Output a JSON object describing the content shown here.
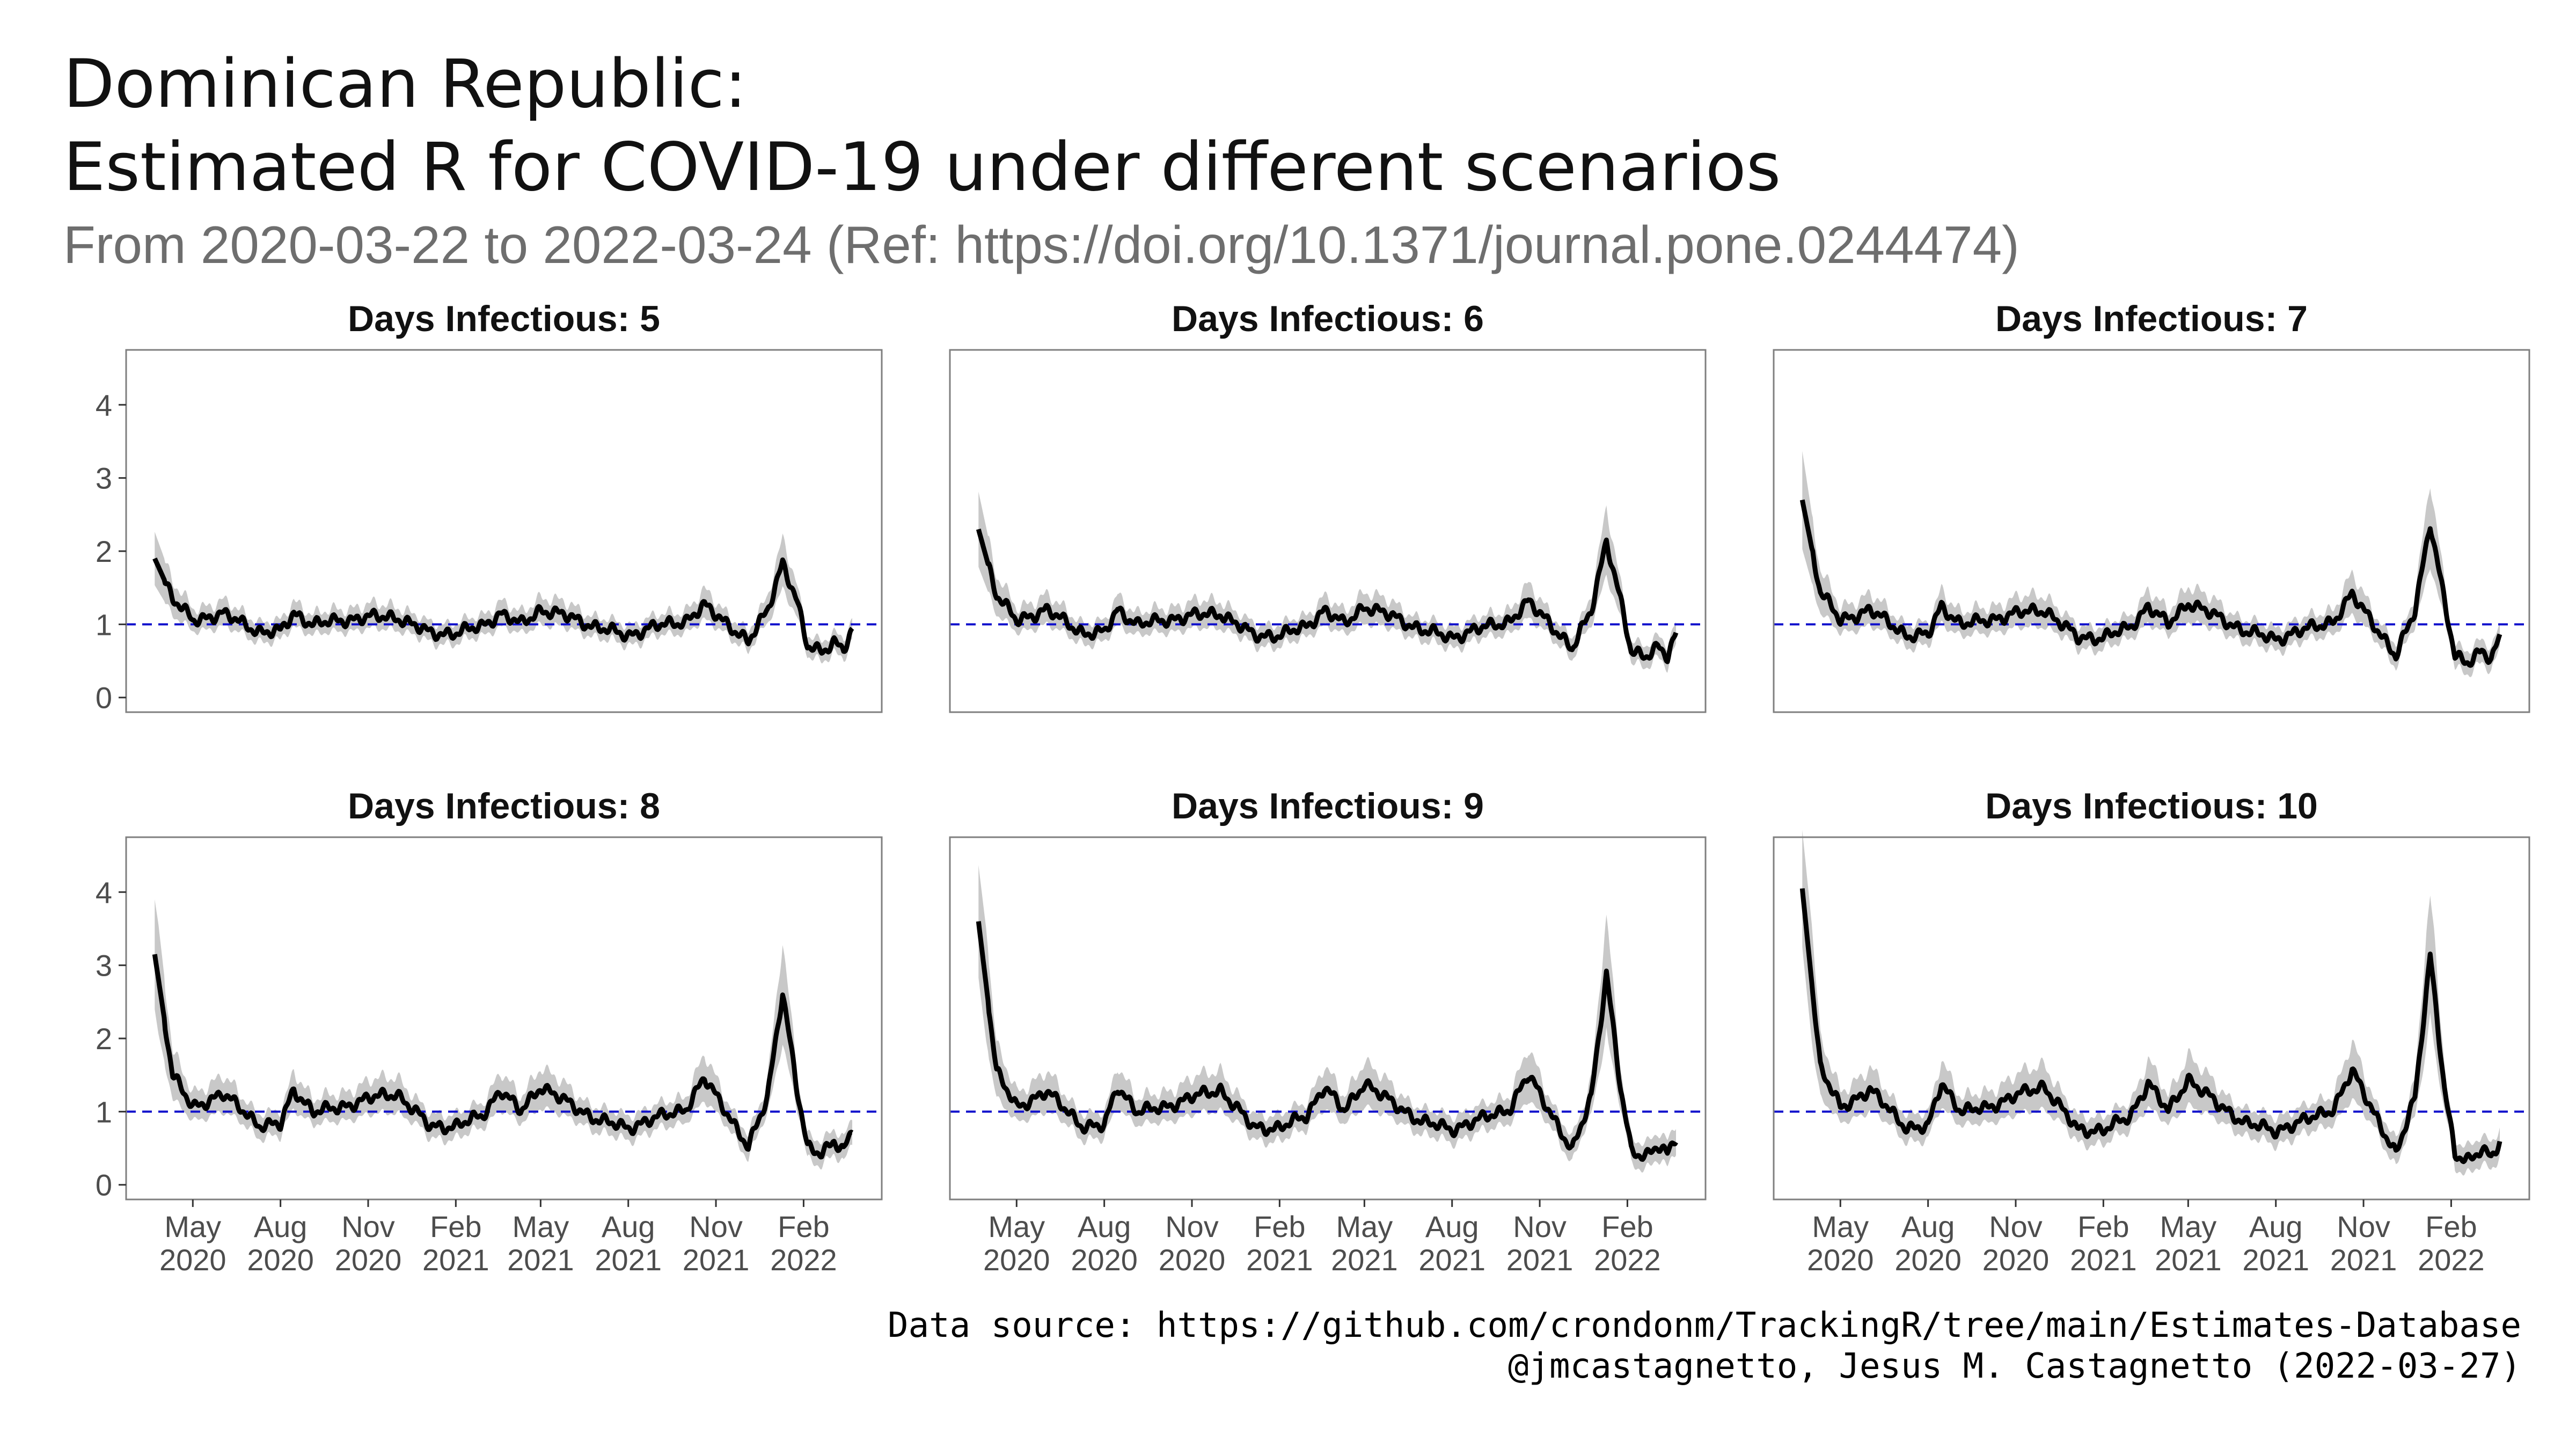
{
  "header": {
    "title_line1": "Dominican Republic:",
    "title_line2": "Estimated R for COVID-19 under different scenarios",
    "subtitle": "From 2020-03-22 to 2022-03-24 (Ref: https://doi.org/10.1371/journal.pone.0244474)"
  },
  "caption": {
    "line1": "Data source: https://github.com/crondonm/TrackingR/tree/main/Estimates-Database",
    "line2": "@jmcastagnetto, Jesus M. Castagnetto (2022-03-27)"
  },
  "colors": {
    "line": "#000000",
    "band": "#c8c8c8",
    "reference": "#1010cc",
    "panel_border": "#7f7f7f",
    "axis_text": "#4d4d4d"
  },
  "chart_data": {
    "type": "line",
    "layout": "facet grid, 2 rows x 3 columns, shared y axis, x labels on bottom row",
    "x_range": [
      "2020-02-21",
      "2022-04-24"
    ],
    "ylim": [
      -0.2,
      4.75
    ],
    "y_ticks": [
      0,
      1,
      2,
      3,
      4
    ],
    "x_ticks": [
      {
        "date": "2020-05-01",
        "month": "May",
        "year": "2020"
      },
      {
        "date": "2020-08-01",
        "month": "Aug",
        "year": "2020"
      },
      {
        "date": "2020-11-01",
        "month": "Nov",
        "year": "2020"
      },
      {
        "date": "2021-02-01",
        "month": "Feb",
        "year": "2021"
      },
      {
        "date": "2021-05-01",
        "month": "May",
        "year": "2021"
      },
      {
        "date": "2021-08-01",
        "month": "Aug",
        "year": "2021"
      },
      {
        "date": "2021-11-01",
        "month": "Nov",
        "year": "2021"
      },
      {
        "date": "2022-02-01",
        "month": "Feb",
        "year": "2022"
      }
    ],
    "reference_line": {
      "y": 1,
      "style": "dashed"
    },
    "grid": false,
    "panels": [
      {
        "title": "Days Infectious: 5",
        "series": [
          [
            "2020-03-22",
            1.9
          ],
          [
            "2020-04-10",
            1.35
          ],
          [
            "2020-05-01",
            1.05
          ],
          [
            "2020-06-01",
            1.15
          ],
          [
            "2020-07-10",
            0.9
          ],
          [
            "2020-08-01",
            0.9
          ],
          [
            "2020-08-15",
            1.15
          ],
          [
            "2020-09-05",
            1.0
          ],
          [
            "2020-10-01",
            1.05
          ],
          [
            "2020-11-01",
            1.1
          ],
          [
            "2020-12-01",
            1.1
          ],
          [
            "2021-01-05",
            0.88
          ],
          [
            "2021-02-01",
            0.88
          ],
          [
            "2021-03-01",
            0.98
          ],
          [
            "2021-03-20",
            1.15
          ],
          [
            "2021-04-10",
            1.0
          ],
          [
            "2021-05-01",
            1.2
          ],
          [
            "2021-06-01",
            1.1
          ],
          [
            "2021-07-01",
            0.95
          ],
          [
            "2021-08-01",
            0.85
          ],
          [
            "2021-09-01",
            0.98
          ],
          [
            "2021-10-01",
            1.05
          ],
          [
            "2021-10-20",
            1.25
          ],
          [
            "2021-11-10",
            1.05
          ],
          [
            "2021-12-05",
            0.75
          ],
          [
            "2021-12-25",
            1.2
          ],
          [
            "2022-01-10",
            1.85
          ],
          [
            "2022-01-25",
            1.3
          ],
          [
            "2022-02-05",
            0.7
          ],
          [
            "2022-02-20",
            0.65
          ],
          [
            "2022-03-05",
            0.75
          ],
          [
            "2022-03-15",
            0.65
          ],
          [
            "2022-03-24",
            0.9
          ]
        ],
        "band": [
          0.12,
          0.25,
          0.28
        ]
      },
      {
        "title": "Days Infectious: 6",
        "series": [
          [
            "2020-03-22",
            2.3
          ],
          [
            "2020-04-10",
            1.4
          ],
          [
            "2020-05-01",
            1.05
          ],
          [
            "2020-06-01",
            1.2
          ],
          [
            "2020-07-10",
            0.88
          ],
          [
            "2020-08-01",
            0.88
          ],
          [
            "2020-08-15",
            1.2
          ],
          [
            "2020-09-05",
            1.0
          ],
          [
            "2020-10-01",
            1.05
          ],
          [
            "2020-11-01",
            1.12
          ],
          [
            "2020-12-01",
            1.15
          ],
          [
            "2021-01-05",
            0.85
          ],
          [
            "2021-02-01",
            0.85
          ],
          [
            "2021-03-01",
            0.97
          ],
          [
            "2021-03-20",
            1.2
          ],
          [
            "2021-04-10",
            1.0
          ],
          [
            "2021-05-01",
            1.25
          ],
          [
            "2021-06-01",
            1.1
          ],
          [
            "2021-07-01",
            0.92
          ],
          [
            "2021-08-01",
            0.82
          ],
          [
            "2021-09-01",
            0.95
          ],
          [
            "2021-10-01",
            1.05
          ],
          [
            "2021-10-20",
            1.3
          ],
          [
            "2021-11-10",
            1.05
          ],
          [
            "2021-12-05",
            0.65
          ],
          [
            "2021-12-25",
            1.2
          ],
          [
            "2022-01-10",
            2.15
          ],
          [
            "2022-01-25",
            1.3
          ],
          [
            "2022-02-05",
            0.62
          ],
          [
            "2022-02-20",
            0.58
          ],
          [
            "2022-03-05",
            0.7
          ],
          [
            "2022-03-15",
            0.55
          ],
          [
            "2022-03-24",
            0.85
          ]
        ],
        "band": [
          0.13,
          0.28,
          0.31
        ]
      },
      {
        "title": "Days Infectious: 7",
        "series": [
          [
            "2020-03-22",
            2.7
          ],
          [
            "2020-04-10",
            1.45
          ],
          [
            "2020-05-01",
            1.05
          ],
          [
            "2020-06-01",
            1.2
          ],
          [
            "2020-07-10",
            0.85
          ],
          [
            "2020-08-01",
            0.85
          ],
          [
            "2020-08-15",
            1.25
          ],
          [
            "2020-09-05",
            1.0
          ],
          [
            "2020-10-01",
            1.05
          ],
          [
            "2020-11-01",
            1.15
          ],
          [
            "2020-12-01",
            1.2
          ],
          [
            "2021-01-05",
            0.82
          ],
          [
            "2021-02-01",
            0.82
          ],
          [
            "2021-03-01",
            0.96
          ],
          [
            "2021-03-20",
            1.25
          ],
          [
            "2021-04-10",
            1.0
          ],
          [
            "2021-05-01",
            1.3
          ],
          [
            "2021-06-01",
            1.1
          ],
          [
            "2021-07-01",
            0.9
          ],
          [
            "2021-08-01",
            0.8
          ],
          [
            "2021-09-01",
            0.93
          ],
          [
            "2021-10-01",
            1.05
          ],
          [
            "2021-10-20",
            1.4
          ],
          [
            "2021-11-10",
            1.05
          ],
          [
            "2021-12-05",
            0.55
          ],
          [
            "2021-12-25",
            1.2
          ],
          [
            "2022-01-10",
            2.4
          ],
          [
            "2022-01-25",
            1.3
          ],
          [
            "2022-02-05",
            0.55
          ],
          [
            "2022-02-20",
            0.5
          ],
          [
            "2022-03-05",
            0.65
          ],
          [
            "2022-03-15",
            0.5
          ],
          [
            "2022-03-24",
            0.8
          ]
        ],
        "band": [
          0.14,
          0.3,
          0.33
        ]
      },
      {
        "title": "Days Infectious: 8",
        "series": [
          [
            "2020-03-22",
            3.15
          ],
          [
            "2020-04-10",
            1.5
          ],
          [
            "2020-05-01",
            1.05
          ],
          [
            "2020-06-01",
            1.25
          ],
          [
            "2020-07-10",
            0.82
          ],
          [
            "2020-08-01",
            0.82
          ],
          [
            "2020-08-15",
            1.3
          ],
          [
            "2020-09-05",
            1.0
          ],
          [
            "2020-10-01",
            1.05
          ],
          [
            "2020-11-01",
            1.18
          ],
          [
            "2020-12-01",
            1.25
          ],
          [
            "2021-01-05",
            0.8
          ],
          [
            "2021-02-01",
            0.8
          ],
          [
            "2021-03-01",
            0.95
          ],
          [
            "2021-03-20",
            1.3
          ],
          [
            "2021-04-10",
            1.0
          ],
          [
            "2021-05-01",
            1.35
          ],
          [
            "2021-06-01",
            1.1
          ],
          [
            "2021-07-01",
            0.88
          ],
          [
            "2021-08-01",
            0.78
          ],
          [
            "2021-09-01",
            0.92
          ],
          [
            "2021-10-01",
            1.05
          ],
          [
            "2021-10-20",
            1.45
          ],
          [
            "2021-11-10",
            1.05
          ],
          [
            "2021-12-05",
            0.5
          ],
          [
            "2021-12-25",
            1.2
          ],
          [
            "2022-01-10",
            2.65
          ],
          [
            "2022-01-25",
            1.3
          ],
          [
            "2022-02-05",
            0.5
          ],
          [
            "2022-02-20",
            0.45
          ],
          [
            "2022-03-05",
            0.6
          ],
          [
            "2022-03-15",
            0.45
          ],
          [
            "2022-03-24",
            0.72
          ]
        ],
        "band": [
          0.15,
          0.32,
          0.35
        ]
      },
      {
        "title": "Days Infectious: 9",
        "series": [
          [
            "2020-03-22",
            3.6
          ],
          [
            "2020-04-10",
            1.55
          ],
          [
            "2020-05-01",
            1.05
          ],
          [
            "2020-06-01",
            1.28
          ],
          [
            "2020-07-10",
            0.8
          ],
          [
            "2020-08-01",
            0.8
          ],
          [
            "2020-08-15",
            1.35
          ],
          [
            "2020-09-05",
            1.0
          ],
          [
            "2020-10-01",
            1.05
          ],
          [
            "2020-11-01",
            1.2
          ],
          [
            "2020-12-01",
            1.3
          ],
          [
            "2021-01-05",
            0.78
          ],
          [
            "2021-02-01",
            0.78
          ],
          [
            "2021-03-01",
            0.94
          ],
          [
            "2021-03-20",
            1.35
          ],
          [
            "2021-04-10",
            1.0
          ],
          [
            "2021-05-01",
            1.4
          ],
          [
            "2021-06-01",
            1.1
          ],
          [
            "2021-07-01",
            0.86
          ],
          [
            "2021-08-01",
            0.76
          ],
          [
            "2021-09-01",
            0.9
          ],
          [
            "2021-10-01",
            1.05
          ],
          [
            "2021-10-20",
            1.5
          ],
          [
            "2021-11-10",
            1.05
          ],
          [
            "2021-12-05",
            0.45
          ],
          [
            "2021-12-25",
            1.2
          ],
          [
            "2022-01-10",
            2.9
          ],
          [
            "2022-01-25",
            1.3
          ],
          [
            "2022-02-05",
            0.45
          ],
          [
            "2022-02-20",
            0.4
          ],
          [
            "2022-03-05",
            0.55
          ],
          [
            "2022-03-15",
            0.4
          ],
          [
            "2022-03-24",
            0.65
          ]
        ],
        "band": [
          0.16,
          0.34,
          0.37
        ]
      },
      {
        "title": "Days Infectious: 10",
        "series": [
          [
            "2020-03-22",
            4.05
          ],
          [
            "2020-04-10",
            1.6
          ],
          [
            "2020-05-01",
            1.05
          ],
          [
            "2020-06-01",
            1.3
          ],
          [
            "2020-07-10",
            0.78
          ],
          [
            "2020-08-01",
            0.78
          ],
          [
            "2020-08-15",
            1.4
          ],
          [
            "2020-09-05",
            1.0
          ],
          [
            "2020-10-01",
            1.05
          ],
          [
            "2020-11-01",
            1.22
          ],
          [
            "2020-12-01",
            1.35
          ],
          [
            "2021-01-05",
            0.75
          ],
          [
            "2021-02-01",
            0.75
          ],
          [
            "2021-03-01",
            0.93
          ],
          [
            "2021-03-20",
            1.4
          ],
          [
            "2021-04-10",
            1.0
          ],
          [
            "2021-05-01",
            1.45
          ],
          [
            "2021-06-01",
            1.1
          ],
          [
            "2021-07-01",
            0.84
          ],
          [
            "2021-08-01",
            0.74
          ],
          [
            "2021-09-01",
            0.88
          ],
          [
            "2021-10-01",
            1.05
          ],
          [
            "2021-10-20",
            1.55
          ],
          [
            "2021-11-10",
            1.05
          ],
          [
            "2021-12-05",
            0.4
          ],
          [
            "2021-12-25",
            1.2
          ],
          [
            "2022-01-10",
            3.15
          ],
          [
            "2022-01-25",
            1.3
          ],
          [
            "2022-02-05",
            0.4
          ],
          [
            "2022-02-20",
            0.35
          ],
          [
            "2022-03-05",
            0.5
          ],
          [
            "2022-03-15",
            0.35
          ],
          [
            "2022-03-24",
            0.58
          ]
        ],
        "band": [
          0.17,
          0.36,
          0.4
        ]
      }
    ]
  }
}
